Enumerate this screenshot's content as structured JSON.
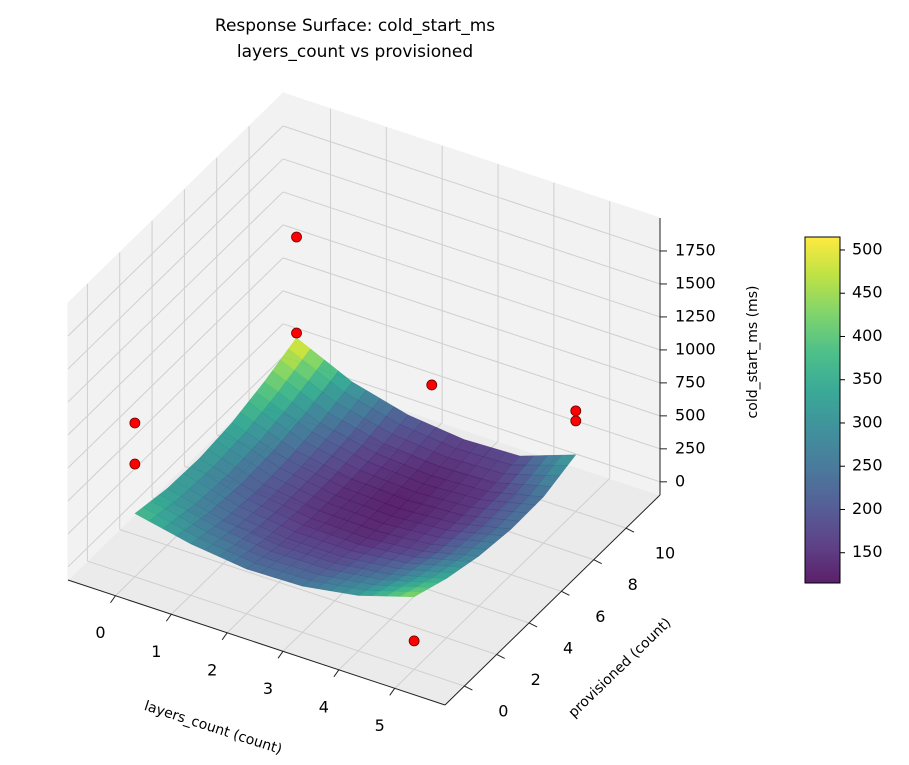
{
  "chart_data": {
    "type": "surface3d",
    "title": "Response Surface: cold_start_ms",
    "subtitle": "layers_count vs provisioned",
    "x_label": "layers_count (count)",
    "y_label": "provisioned (count)",
    "z_label": "cold_start_ms (ms)",
    "x": [
      0,
      1,
      2,
      3,
      4,
      5
    ],
    "y": [
      0,
      2,
      4,
      6,
      8,
      10
    ],
    "z": [
      [
        380,
        290,
        240,
        250,
        320,
        450
      ],
      [
        330,
        230,
        180,
        185,
        240,
        350
      ],
      [
        320,
        200,
        145,
        135,
        175,
        280
      ],
      [
        350,
        210,
        140,
        120,
        150,
        245
      ],
      [
        420,
        250,
        160,
        130,
        150,
        250
      ],
      [
        515,
        320,
        210,
        165,
        180,
        330
      ]
    ],
    "xlim": [
      -0.85,
      5.9
    ],
    "ylim": [
      -1.2,
      12.1
    ],
    "zlim": [
      -100,
      2000
    ],
    "xticks": [
      0,
      1,
      2,
      3,
      4,
      5
    ],
    "yticks": [
      0,
      2,
      4,
      6,
      8,
      10
    ],
    "zticks": [
      0,
      250,
      500,
      750,
      1000,
      1250,
      1500,
      1750
    ],
    "colormap": [
      "#440154",
      "#482878",
      "#3e4989",
      "#31688e",
      "#26828e",
      "#1f9e89",
      "#35b779",
      "#6ece58",
      "#b5de2b",
      "#fde725"
    ],
    "clim": [
      115,
      515
    ],
    "cticks": [
      150,
      200,
      250,
      300,
      350,
      400,
      450,
      500
    ],
    "alpha": 0.88,
    "points": {
      "color": "#ff0000",
      "x": [
        0,
        0,
        0,
        0,
        3,
        5,
        5,
        5
      ],
      "y": [
        10,
        10,
        0,
        0,
        8,
        10,
        10,
        0
      ],
      "z": [
        1279,
        551,
        1066,
        755,
        818,
        663,
        587,
        116
      ]
    }
  }
}
